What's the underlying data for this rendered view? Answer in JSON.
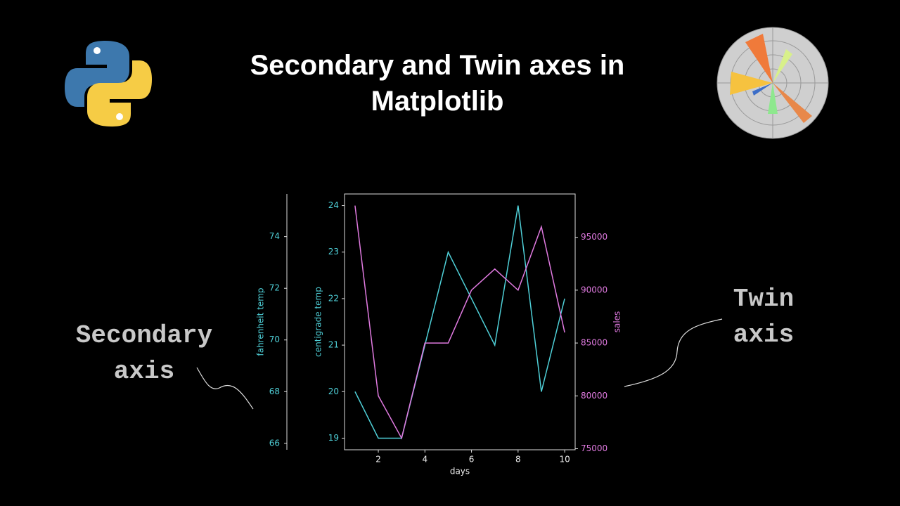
{
  "chart_data": {
    "type": "line",
    "title": "Secondary and Twin axes in Matplotlib",
    "annotations": [
      "Secondary axis",
      "Twin axis"
    ],
    "xlabel": "days",
    "ylabel": "centigrade temp",
    "y2label": "sales",
    "x": [
      1,
      2,
      3,
      4,
      5,
      6,
      7,
      8,
      9,
      10
    ],
    "xlim": [
      0.55,
      10.45
    ],
    "xticks": [
      2,
      4,
      6,
      8,
      10
    ],
    "ylim": [
      18.75,
      24.25
    ],
    "yticks": [
      19,
      20,
      21,
      22,
      23,
      24
    ],
    "y2lim": [
      74900,
      99100
    ],
    "y2ticks": [
      75000,
      80000,
      85000,
      90000,
      95000
    ],
    "secondary_axis": {
      "label": "fahrenheit temp",
      "ylim": [
        65.75,
        75.65
      ],
      "yticks": [
        66,
        68,
        70,
        72,
        74
      ],
      "color": "#4fd0d8"
    },
    "series": [
      {
        "name": "centigrade temp",
        "color": "#4fd0d8",
        "values": [
          20,
          19,
          19,
          21,
          23,
          22,
          21,
          24,
          20,
          22
        ]
      },
      {
        "name": "sales",
        "color": "#e07ae0",
        "axis": "y2",
        "values": [
          98000,
          80000,
          76000,
          85000,
          85000,
          90000,
          92000,
          90000,
          96000,
          86000
        ]
      }
    ]
  }
}
